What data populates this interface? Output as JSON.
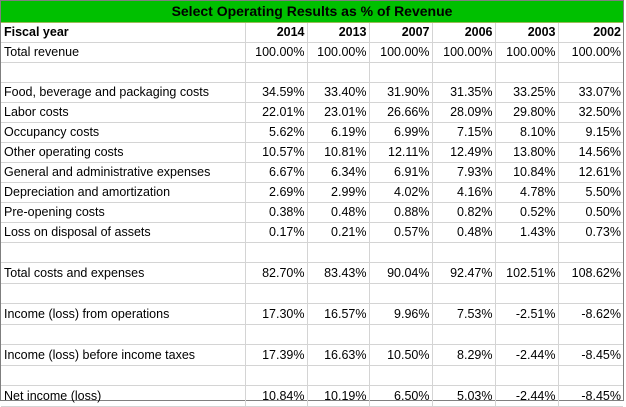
{
  "title": "Select Operating Results as % of Revenue",
  "header": {
    "label": "Fiscal year",
    "years": [
      "2014",
      "2013",
      "2007",
      "2006",
      "2003",
      "2002"
    ]
  },
  "rows": {
    "total_revenue": {
      "label": "Total revenue",
      "values": [
        "100.00%",
        "100.00%",
        "100.00%",
        "100.00%",
        "100.00%",
        "100.00%"
      ]
    },
    "food": {
      "label": "Food, beverage and packaging costs",
      "values": [
        "34.59%",
        "33.40%",
        "31.90%",
        "31.35%",
        "33.25%",
        "33.07%"
      ]
    },
    "labor": {
      "label": "Labor costs",
      "values": [
        "22.01%",
        "23.01%",
        "26.66%",
        "28.09%",
        "29.80%",
        "32.50%"
      ]
    },
    "occupancy": {
      "label": "Occupancy costs",
      "values": [
        "5.62%",
        "6.19%",
        "6.99%",
        "7.15%",
        "8.10%",
        "9.15%"
      ]
    },
    "other_op": {
      "label": "Other operating costs",
      "values": [
        "10.57%",
        "10.81%",
        "12.11%",
        "12.49%",
        "13.80%",
        "14.56%"
      ]
    },
    "ga": {
      "label": "General and administrative expenses",
      "values": [
        "6.67%",
        "6.34%",
        "6.91%",
        "7.93%",
        "10.84%",
        "12.61%"
      ]
    },
    "dep": {
      "label": "Depreciation and amortization",
      "values": [
        "2.69%",
        "2.99%",
        "4.02%",
        "4.16%",
        "4.78%",
        "5.50%"
      ]
    },
    "preopen": {
      "label": "Pre-opening costs",
      "values": [
        "0.38%",
        "0.48%",
        "0.88%",
        "0.82%",
        "0.52%",
        "0.50%"
      ]
    },
    "loss_disposal": {
      "label": "Loss on disposal of assets",
      "values": [
        "0.17%",
        "0.21%",
        "0.57%",
        "0.48%",
        "1.43%",
        "0.73%"
      ]
    },
    "total_costs": {
      "label": "Total costs and expenses",
      "values": [
        "82.70%",
        "83.43%",
        "90.04%",
        "92.47%",
        "102.51%",
        "108.62%"
      ]
    },
    "income_ops": {
      "label": "Income (loss) from operations",
      "values": [
        "17.30%",
        "16.57%",
        "9.96%",
        "7.53%",
        "-2.51%",
        "-8.62%"
      ]
    },
    "income_pretax": {
      "label": "Income (loss) before income taxes",
      "values": [
        "17.39%",
        "16.63%",
        "10.50%",
        "8.29%",
        "-2.44%",
        "-8.45%"
      ]
    },
    "net_income": {
      "label": "Net income (loss)",
      "values": [
        "10.84%",
        "10.19%",
        "6.50%",
        "5.03%",
        "-2.44%",
        "-8.45%"
      ]
    }
  }
}
